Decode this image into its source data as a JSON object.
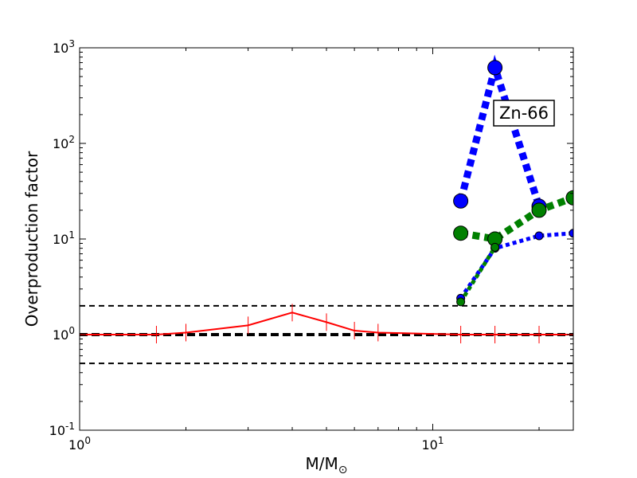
{
  "chart_data": {
    "type": "line",
    "title": "",
    "xlabel": "M/M",
    "xlabel_subscript": "⊙",
    "ylabel": "Overproduction factor",
    "xscale": "log",
    "yscale": "log",
    "xlim": [
      1,
      25
    ],
    "ylim": [
      0.1,
      1000
    ],
    "x_ticks": [
      {
        "value": 1,
        "base": "10",
        "exp": "0"
      },
      {
        "value": 10,
        "base": "10",
        "exp": "1"
      }
    ],
    "y_ticks": [
      {
        "value": 0.1,
        "base": "10",
        "exp": "-1"
      },
      {
        "value": 1,
        "base": "10",
        "exp": "0"
      },
      {
        "value": 10,
        "base": "10",
        "exp": "1"
      },
      {
        "value": 100,
        "base": "10",
        "exp": "2"
      },
      {
        "value": 1000,
        "base": "10",
        "exp": "3"
      }
    ],
    "grid": false,
    "annotation": "Zn-66",
    "reference_lines": [
      {
        "y": 2.0,
        "style": "dashed",
        "weight": "normal"
      },
      {
        "y": 1.0,
        "style": "dashed",
        "weight": "bold"
      },
      {
        "y": 0.5,
        "style": "dashed",
        "weight": "normal"
      }
    ],
    "series": [
      {
        "color": "#ff0000",
        "style": "solid",
        "marker": "vline",
        "x": [
          1,
          1.65,
          2,
          3,
          4,
          5,
          6,
          7,
          12,
          15,
          20,
          25
        ],
        "y": [
          1.0,
          1.0,
          1.05,
          1.25,
          1.7,
          1.35,
          1.1,
          1.05,
          1.0,
          1.0,
          1.0,
          1.0
        ]
      },
      {
        "color": "#0000ff",
        "style": "dotted",
        "weight": "bold",
        "marker": "circle-large",
        "x": [
          12,
          15,
          20,
          25
        ],
        "y": [
          25,
          620,
          22,
          null
        ]
      },
      {
        "color": "#008000",
        "style": "dotted",
        "weight": "bold",
        "marker": "circle-large",
        "x": [
          12,
          15,
          20,
          25
        ],
        "y": [
          11.5,
          10,
          20,
          27
        ]
      },
      {
        "color": "#0000ff",
        "style": "dotted",
        "weight": "normal",
        "marker": "circle-small",
        "x": [
          12,
          15,
          20,
          25
        ],
        "y": [
          2.4,
          8,
          10.8,
          11.5
        ]
      },
      {
        "color": "#008000",
        "style": "dotted",
        "weight": "normal",
        "marker": "circle-small",
        "x": [
          12,
          15
        ],
        "y": [
          2.2,
          8.2
        ]
      }
    ]
  }
}
